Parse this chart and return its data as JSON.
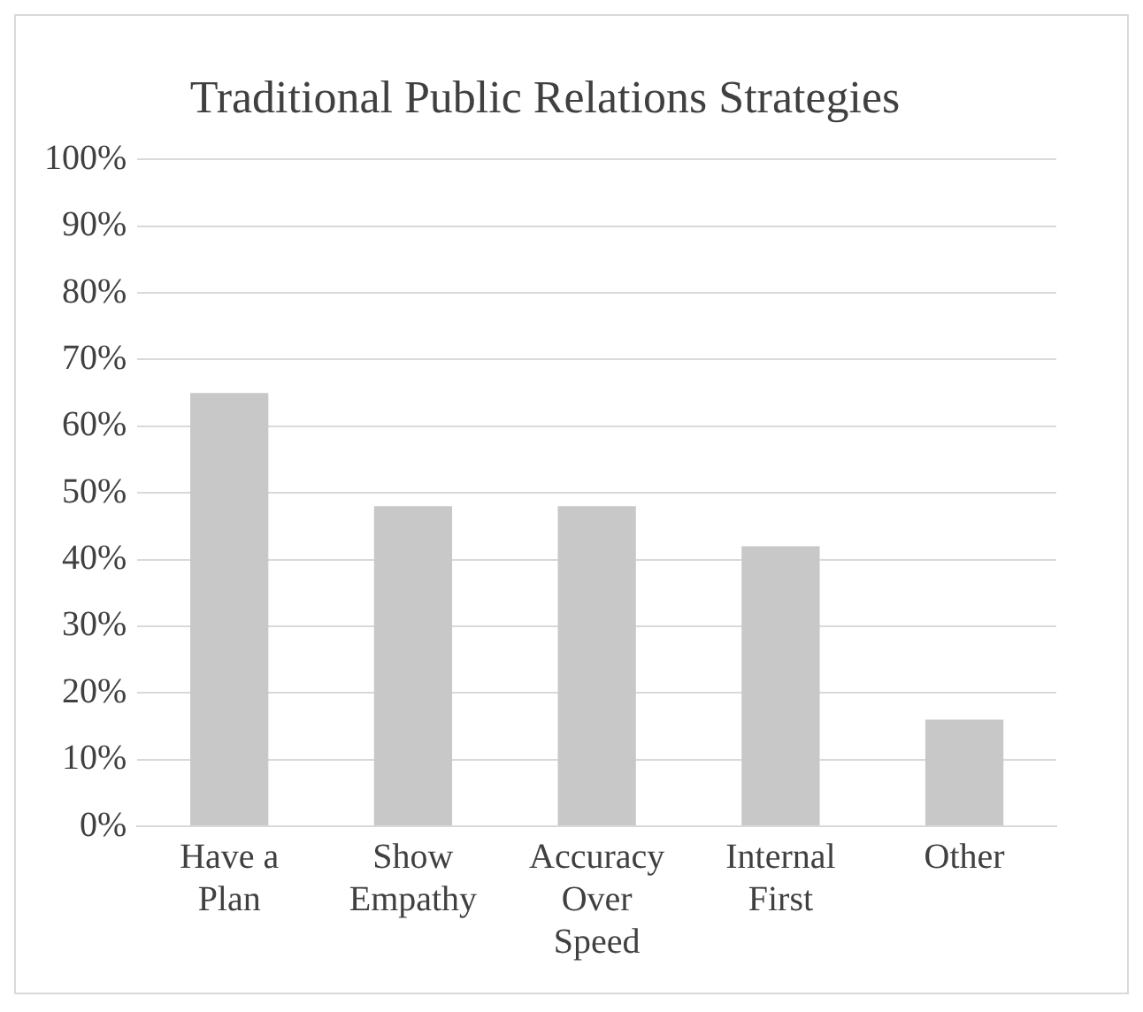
{
  "chart_data": {
    "type": "bar",
    "title": "Traditional Public Relations Strategies",
    "categories": [
      "Have a Plan",
      "Show Empathy",
      "Accuracy Over Speed",
      "Internal First",
      "Other"
    ],
    "values": [
      65,
      48,
      48,
      42,
      16
    ],
    "color": "#c8c8c8",
    "ylim": [
      0,
      100
    ],
    "yticks": [
      {
        "value": 0,
        "label": "0%"
      },
      {
        "value": 10,
        "label": "10%"
      },
      {
        "value": 20,
        "label": "20%"
      },
      {
        "value": 30,
        "label": "30%"
      },
      {
        "value": 40,
        "label": "40%"
      },
      {
        "value": 50,
        "label": "50%"
      },
      {
        "value": 60,
        "label": "60%"
      },
      {
        "value": 70,
        "label": "70%"
      },
      {
        "value": 80,
        "label": "80%"
      },
      {
        "value": 90,
        "label": "90%"
      },
      {
        "value": 100,
        "label": "100%"
      }
    ],
    "grid": "y",
    "legend": false
  }
}
